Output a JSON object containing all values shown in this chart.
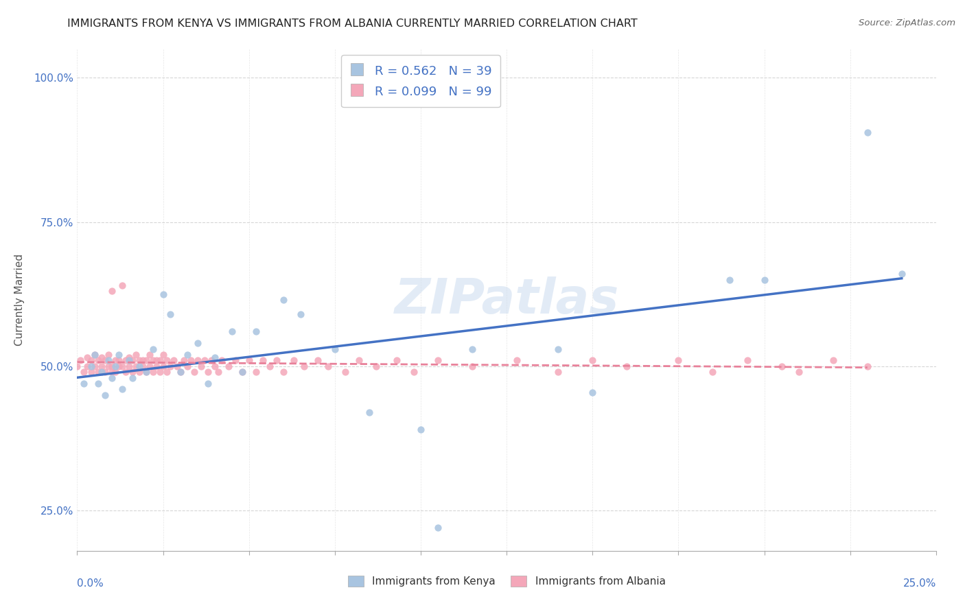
{
  "title": "IMMIGRANTS FROM KENYA VS IMMIGRANTS FROM ALBANIA CURRENTLY MARRIED CORRELATION CHART",
  "source": "Source: ZipAtlas.com",
  "ylabel": "Currently Married",
  "yticks": [
    0.25,
    0.5,
    0.75,
    1.0
  ],
  "ytick_labels": [
    "25.0%",
    "50.0%",
    "75.0%",
    "100.0%"
  ],
  "xlim": [
    0.0,
    0.25
  ],
  "ylim": [
    0.18,
    1.05
  ],
  "kenya_R": 0.562,
  "kenya_N": 39,
  "albania_R": 0.099,
  "albania_N": 99,
  "kenya_color": "#a8c4e0",
  "albania_color": "#f4a7b9",
  "kenya_line_color": "#4472c4",
  "albania_line_color": "#f4a7b9",
  "legend_label_kenya": "Immigrants from Kenya",
  "legend_label_albania": "Immigrants from Albania",
  "watermark": "ZIPatlas",
  "background_color": "#ffffff",
  "grid_color": "#cccccc",
  "kenya_x": [
    0.002,
    0.004,
    0.005,
    0.006,
    0.007,
    0.008,
    0.009,
    0.01,
    0.011,
    0.012,
    0.013,
    0.015,
    0.016,
    0.018,
    0.02,
    0.022,
    0.025,
    0.027,
    0.03,
    0.032,
    0.035,
    0.038,
    0.04,
    0.045,
    0.048,
    0.052,
    0.06,
    0.065,
    0.075,
    0.085,
    0.1,
    0.105,
    0.115,
    0.14,
    0.15,
    0.19,
    0.2,
    0.23,
    0.24
  ],
  "kenya_y": [
    0.47,
    0.5,
    0.52,
    0.47,
    0.49,
    0.45,
    0.51,
    0.48,
    0.5,
    0.52,
    0.46,
    0.51,
    0.48,
    0.5,
    0.49,
    0.53,
    0.625,
    0.59,
    0.49,
    0.52,
    0.54,
    0.47,
    0.515,
    0.56,
    0.49,
    0.56,
    0.615,
    0.59,
    0.53,
    0.42,
    0.39,
    0.22,
    0.53,
    0.53,
    0.455,
    0.65,
    0.65,
    0.905,
    0.66
  ],
  "albania_x": [
    0.0,
    0.001,
    0.002,
    0.003,
    0.003,
    0.004,
    0.004,
    0.005,
    0.005,
    0.006,
    0.006,
    0.007,
    0.007,
    0.008,
    0.008,
    0.009,
    0.009,
    0.01,
    0.01,
    0.01,
    0.011,
    0.011,
    0.012,
    0.012,
    0.013,
    0.013,
    0.014,
    0.014,
    0.015,
    0.015,
    0.016,
    0.016,
    0.017,
    0.017,
    0.018,
    0.018,
    0.019,
    0.019,
    0.02,
    0.02,
    0.021,
    0.021,
    0.022,
    0.022,
    0.023,
    0.023,
    0.024,
    0.024,
    0.025,
    0.025,
    0.026,
    0.026,
    0.027,
    0.028,
    0.029,
    0.03,
    0.031,
    0.032,
    0.033,
    0.034,
    0.035,
    0.036,
    0.037,
    0.038,
    0.039,
    0.04,
    0.041,
    0.042,
    0.044,
    0.046,
    0.048,
    0.05,
    0.052,
    0.054,
    0.056,
    0.058,
    0.06,
    0.063,
    0.066,
    0.07,
    0.073,
    0.078,
    0.082,
    0.087,
    0.093,
    0.098,
    0.105,
    0.115,
    0.128,
    0.14,
    0.15,
    0.16,
    0.175,
    0.185,
    0.195,
    0.205,
    0.21,
    0.22,
    0.23
  ],
  "albania_y": [
    0.5,
    0.51,
    0.49,
    0.515,
    0.5,
    0.49,
    0.51,
    0.5,
    0.52,
    0.49,
    0.51,
    0.5,
    0.515,
    0.49,
    0.51,
    0.5,
    0.52,
    0.63,
    0.5,
    0.49,
    0.51,
    0.49,
    0.51,
    0.5,
    0.64,
    0.5,
    0.49,
    0.51,
    0.5,
    0.515,
    0.49,
    0.51,
    0.5,
    0.52,
    0.49,
    0.51,
    0.51,
    0.5,
    0.49,
    0.51,
    0.5,
    0.52,
    0.51,
    0.49,
    0.51,
    0.5,
    0.49,
    0.51,
    0.5,
    0.52,
    0.49,
    0.51,
    0.5,
    0.51,
    0.5,
    0.49,
    0.51,
    0.5,
    0.51,
    0.49,
    0.51,
    0.5,
    0.51,
    0.49,
    0.51,
    0.5,
    0.49,
    0.51,
    0.5,
    0.51,
    0.49,
    0.51,
    0.49,
    0.51,
    0.5,
    0.51,
    0.49,
    0.51,
    0.5,
    0.51,
    0.5,
    0.49,
    0.51,
    0.5,
    0.51,
    0.49,
    0.51,
    0.5,
    0.51,
    0.49,
    0.51,
    0.5,
    0.51,
    0.49,
    0.51,
    0.5,
    0.49,
    0.51,
    0.5
  ]
}
